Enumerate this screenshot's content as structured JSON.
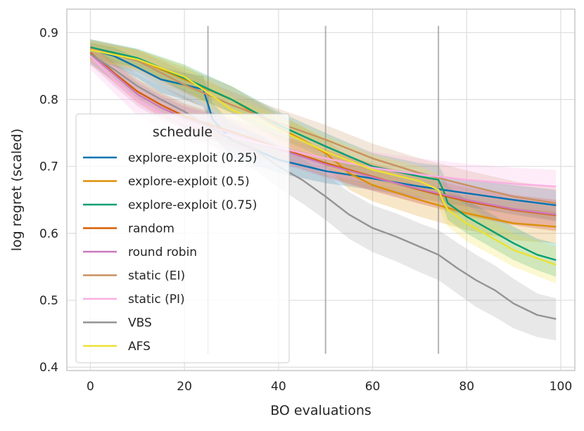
{
  "chart_data": {
    "type": "line",
    "title": "",
    "xlabel": "BO evaluations",
    "ylabel": "log regret (scaled)",
    "xlim": [
      -5,
      103
    ],
    "ylim": [
      0.395,
      0.935
    ],
    "xticks": [
      0,
      20,
      40,
      60,
      80,
      100
    ],
    "yticks": [
      0.4,
      0.5,
      0.6,
      0.7,
      0.8,
      0.9
    ],
    "ytick_labels": [
      "0.4",
      "0.5",
      "0.6",
      "0.7",
      "0.8",
      "0.9"
    ],
    "grid": true,
    "legend": {
      "title": "schedule",
      "placement": "center-left"
    },
    "vlines": {
      "x": [
        25,
        50,
        74
      ],
      "ymin": 0.42,
      "ymax": 0.91,
      "color": "#999999"
    },
    "series": [
      {
        "name": "explore-exploit (0.25)",
        "color": "#0173b2",
        "x": [
          0,
          5,
          10,
          15,
          20,
          24,
          25,
          26,
          30,
          40,
          50,
          60,
          70,
          74,
          80,
          90,
          99
        ],
        "y": [
          0.875,
          0.865,
          0.848,
          0.83,
          0.822,
          0.815,
          0.793,
          0.77,
          0.74,
          0.71,
          0.693,
          0.682,
          0.67,
          0.666,
          0.66,
          0.65,
          0.642
        ],
        "lo": [
          0.86,
          0.85,
          0.832,
          0.81,
          0.8,
          0.79,
          0.77,
          0.745,
          0.715,
          0.69,
          0.675,
          0.665,
          0.652,
          0.647,
          0.64,
          0.628,
          0.618
        ],
        "hi": [
          0.885,
          0.878,
          0.862,
          0.848,
          0.84,
          0.835,
          0.815,
          0.795,
          0.765,
          0.732,
          0.713,
          0.7,
          0.69,
          0.686,
          0.68,
          0.672,
          0.665
        ]
      },
      {
        "name": "explore-exploit (0.5)",
        "color": "#de8f05",
        "x": [
          0,
          10,
          20,
          30,
          40,
          45,
          50,
          55,
          60,
          70,
          80,
          90,
          99
        ],
        "y": [
          0.878,
          0.86,
          0.83,
          0.8,
          0.758,
          0.74,
          0.72,
          0.69,
          0.672,
          0.65,
          0.63,
          0.615,
          0.61
        ],
        "lo": [
          0.862,
          0.845,
          0.81,
          0.78,
          0.738,
          0.72,
          0.7,
          0.665,
          0.648,
          0.625,
          0.605,
          0.59,
          0.585
        ],
        "hi": [
          0.89,
          0.875,
          0.848,
          0.82,
          0.778,
          0.76,
          0.74,
          0.715,
          0.695,
          0.672,
          0.652,
          0.638,
          0.633
        ]
      },
      {
        "name": "explore-exploit (0.75)",
        "color": "#029e73",
        "x": [
          0,
          10,
          20,
          30,
          40,
          50,
          60,
          70,
          74,
          75,
          76,
          80,
          85,
          90,
          95,
          99
        ],
        "y": [
          0.878,
          0.862,
          0.832,
          0.8,
          0.762,
          0.73,
          0.7,
          0.685,
          0.68,
          0.665,
          0.645,
          0.625,
          0.605,
          0.585,
          0.568,
          0.56
        ],
        "lo": [
          0.862,
          0.848,
          0.812,
          0.78,
          0.742,
          0.712,
          0.68,
          0.663,
          0.655,
          0.64,
          0.62,
          0.6,
          0.58,
          0.56,
          0.545,
          0.535
        ],
        "hi": [
          0.89,
          0.876,
          0.852,
          0.82,
          0.782,
          0.75,
          0.72,
          0.705,
          0.702,
          0.69,
          0.67,
          0.65,
          0.63,
          0.61,
          0.592,
          0.585
        ]
      },
      {
        "name": "random",
        "color": "#d55e00",
        "x": [
          0,
          5,
          10,
          15,
          20,
          30,
          40,
          50,
          60,
          70,
          80,
          90,
          99
        ],
        "y": [
          0.87,
          0.84,
          0.812,
          0.792,
          0.775,
          0.752,
          0.728,
          0.705,
          0.685,
          0.665,
          0.648,
          0.635,
          0.627
        ],
        "lo": [
          0.855,
          0.825,
          0.795,
          0.774,
          0.756,
          0.732,
          0.708,
          0.685,
          0.664,
          0.644,
          0.626,
          0.612,
          0.603
        ],
        "hi": [
          0.882,
          0.856,
          0.83,
          0.81,
          0.794,
          0.772,
          0.748,
          0.725,
          0.705,
          0.685,
          0.668,
          0.657,
          0.65
        ]
      },
      {
        "name": "round robin",
        "color": "#cc78bc",
        "x": [
          0,
          5,
          10,
          15,
          20,
          30,
          40,
          50,
          60,
          70,
          80,
          90,
          99
        ],
        "y": [
          0.868,
          0.838,
          0.808,
          0.788,
          0.772,
          0.75,
          0.726,
          0.703,
          0.684,
          0.666,
          0.65,
          0.636,
          0.628
        ],
        "lo": [
          0.852,
          0.82,
          0.79,
          0.77,
          0.753,
          0.73,
          0.706,
          0.683,
          0.663,
          0.645,
          0.628,
          0.613,
          0.605
        ],
        "hi": [
          0.88,
          0.854,
          0.826,
          0.806,
          0.79,
          0.77,
          0.746,
          0.723,
          0.704,
          0.686,
          0.671,
          0.658,
          0.65
        ]
      },
      {
        "name": "static (EI)",
        "color": "#ca9161",
        "x": [
          0,
          10,
          20,
          30,
          40,
          50,
          60,
          70,
          80,
          90,
          99
        ],
        "y": [
          0.876,
          0.858,
          0.822,
          0.792,
          0.765,
          0.74,
          0.712,
          0.69,
          0.672,
          0.655,
          0.645
        ],
        "lo": [
          0.86,
          0.84,
          0.8,
          0.77,
          0.742,
          0.718,
          0.69,
          0.668,
          0.65,
          0.632,
          0.62
        ],
        "hi": [
          0.888,
          0.874,
          0.842,
          0.812,
          0.786,
          0.762,
          0.734,
          0.712,
          0.694,
          0.678,
          0.668
        ]
      },
      {
        "name": "static (PI)",
        "color": "#fbafe4",
        "x": [
          0,
          5,
          10,
          15,
          20,
          30,
          40,
          50,
          60,
          70,
          80,
          90,
          99
        ],
        "y": [
          0.865,
          0.83,
          0.8,
          0.78,
          0.765,
          0.745,
          0.728,
          0.712,
          0.698,
          0.688,
          0.68,
          0.674,
          0.67
        ],
        "lo": [
          0.845,
          0.81,
          0.776,
          0.756,
          0.74,
          0.72,
          0.704,
          0.688,
          0.674,
          0.664,
          0.656,
          0.649,
          0.645
        ],
        "hi": [
          0.882,
          0.85,
          0.824,
          0.805,
          0.79,
          0.77,
          0.752,
          0.736,
          0.722,
          0.712,
          0.704,
          0.698,
          0.695
        ]
      },
      {
        "name": "VBS",
        "color": "#949494",
        "x": [
          0,
          5,
          10,
          15,
          20,
          25,
          30,
          35,
          40,
          45,
          50,
          55,
          60,
          65,
          70,
          74,
          78,
          82,
          86,
          90,
          95,
          99
        ],
        "y": [
          0.868,
          0.845,
          0.82,
          0.8,
          0.782,
          0.76,
          0.74,
          0.725,
          0.7,
          0.68,
          0.655,
          0.628,
          0.608,
          0.595,
          0.58,
          0.568,
          0.548,
          0.53,
          0.515,
          0.495,
          0.478,
          0.472
        ],
        "lo": [
          0.852,
          0.828,
          0.8,
          0.778,
          0.758,
          0.735,
          0.712,
          0.695,
          0.668,
          0.645,
          0.62,
          0.592,
          0.572,
          0.558,
          0.542,
          0.53,
          0.51,
          0.49,
          0.475,
          0.458,
          0.445,
          0.44
        ],
        "hi": [
          0.88,
          0.86,
          0.838,
          0.82,
          0.805,
          0.785,
          0.768,
          0.752,
          0.73,
          0.712,
          0.688,
          0.662,
          0.642,
          0.63,
          0.615,
          0.605,
          0.586,
          0.568,
          0.552,
          0.532,
          0.51,
          0.503
        ]
      },
      {
        "name": "AFS",
        "color": "#ece133",
        "x": [
          0,
          10,
          20,
          25,
          30,
          40,
          50,
          60,
          70,
          74,
          75,
          76,
          80,
          90,
          99
        ],
        "y": [
          0.874,
          0.86,
          0.834,
          0.81,
          0.785,
          0.755,
          0.722,
          0.695,
          0.678,
          0.665,
          0.648,
          0.635,
          0.615,
          0.575,
          0.553
        ],
        "lo": [
          0.858,
          0.845,
          0.815,
          0.79,
          0.765,
          0.735,
          0.7,
          0.672,
          0.655,
          0.642,
          0.625,
          0.61,
          0.588,
          0.55,
          0.525
        ],
        "hi": [
          0.886,
          0.874,
          0.852,
          0.83,
          0.805,
          0.775,
          0.744,
          0.718,
          0.7,
          0.688,
          0.672,
          0.66,
          0.642,
          0.6,
          0.58
        ]
      }
    ]
  }
}
